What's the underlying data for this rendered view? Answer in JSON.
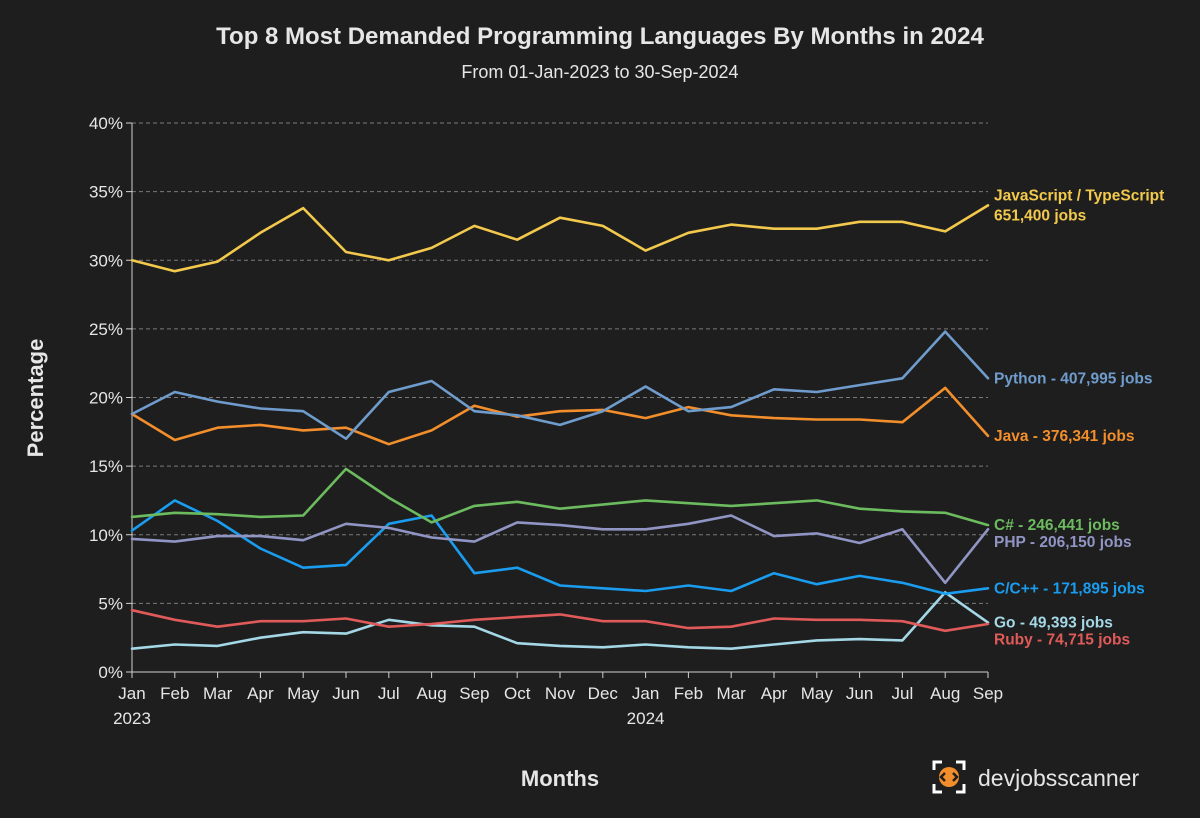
{
  "chart_data": {
    "type": "line",
    "title": "Top 8 Most Demanded Programming Languages By Months in 2024",
    "subtitle": "From 01-Jan-2023 to 30-Sep-2024",
    "xlabel": "Months",
    "ylabel": "Percentage",
    "ylim": [
      0,
      40
    ],
    "y_ticks": [
      "0%",
      "5%",
      "10%",
      "15%",
      "20%",
      "25%",
      "30%",
      "35%",
      "40%"
    ],
    "grid": "horizontal-dashed",
    "legend": "none (labels at line ends, right side)",
    "categories": [
      "Jan",
      "Feb",
      "Mar",
      "Apr",
      "May",
      "Jun",
      "Jul",
      "Aug",
      "Sep",
      "Oct",
      "Nov",
      "Dec",
      "Jan",
      "Feb",
      "Mar",
      "Apr",
      "May",
      "Jun",
      "Jul",
      "Aug",
      "Sep"
    ],
    "year_labels": [
      {
        "index": 0,
        "label": "2023"
      },
      {
        "index": 12,
        "label": "2024"
      }
    ],
    "series": [
      {
        "name": "JavaScript / TypeScript",
        "label_line1": "JavaScript / TypeScript",
        "label_line2": "651,400 jobs",
        "color": "#f2c94c",
        "values": [
          30.0,
          29.2,
          29.9,
          32.0,
          33.8,
          30.6,
          30.0,
          30.9,
          32.5,
          31.5,
          33.1,
          32.5,
          30.7,
          32.0,
          32.6,
          32.3,
          32.3,
          32.8,
          32.8,
          32.1,
          34.0
        ]
      },
      {
        "name": "Python",
        "label_line1": "Python - 407,995 jobs",
        "color": "#6f9ccc",
        "values": [
          18.8,
          20.4,
          19.7,
          19.2,
          19.0,
          17.0,
          20.4,
          21.2,
          19.0,
          18.7,
          18.0,
          19.0,
          20.8,
          19.0,
          19.3,
          20.6,
          20.4,
          20.9,
          21.4,
          24.8,
          21.4
        ]
      },
      {
        "name": "Java",
        "label_line1": "Java - 376,341 jobs",
        "color": "#f28e2b",
        "values": [
          18.8,
          16.9,
          17.8,
          18.0,
          17.6,
          17.8,
          16.6,
          17.6,
          19.4,
          18.6,
          19.0,
          19.1,
          18.5,
          19.3,
          18.7,
          18.5,
          18.4,
          18.4,
          18.2,
          20.7,
          17.2
        ]
      },
      {
        "name": "C#",
        "label_line1": "C# - 246,441 jobs",
        "color": "#6cbb5f",
        "values": [
          11.3,
          11.6,
          11.5,
          11.3,
          11.4,
          14.8,
          12.7,
          10.9,
          12.1,
          12.4,
          11.9,
          12.2,
          12.5,
          12.3,
          12.1,
          12.3,
          12.5,
          11.9,
          11.7,
          11.6,
          10.7
        ]
      },
      {
        "name": "PHP",
        "label_line1": "PHP - 206,150 jobs",
        "color": "#9195c4",
        "values": [
          9.7,
          9.5,
          9.9,
          9.9,
          9.6,
          10.8,
          10.5,
          9.8,
          9.5,
          10.9,
          10.7,
          10.4,
          10.4,
          10.8,
          11.4,
          9.9,
          10.1,
          9.4,
          10.4,
          6.5,
          10.4
        ]
      },
      {
        "name": "C/C++",
        "label_line1": "C/C++ - 171,895 jobs",
        "color": "#1a9cef",
        "values": [
          10.3,
          12.5,
          11.0,
          9.0,
          7.6,
          7.8,
          10.8,
          11.4,
          7.2,
          7.6,
          6.3,
          6.1,
          5.9,
          6.3,
          5.9,
          7.2,
          6.4,
          7.0,
          6.5,
          5.7,
          6.1
        ]
      },
      {
        "name": "Ruby",
        "label_line1": "Ruby - 74,715 jobs",
        "color": "#e05a5a",
        "values": [
          4.5,
          3.8,
          3.3,
          3.7,
          3.7,
          3.9,
          3.3,
          3.5,
          3.8,
          4.0,
          4.2,
          3.7,
          3.7,
          3.2,
          3.3,
          3.9,
          3.8,
          3.8,
          3.7,
          3.0,
          3.5
        ]
      },
      {
        "name": "Go",
        "label_line1": "Go - 49,393 jobs",
        "color": "#a4d8e6",
        "values": [
          1.7,
          2.0,
          1.9,
          2.5,
          2.9,
          2.8,
          3.8,
          3.4,
          3.3,
          2.1,
          1.9,
          1.8,
          2.0,
          1.8,
          1.7,
          2.0,
          2.3,
          2.4,
          2.3,
          5.8,
          3.6
        ]
      }
    ]
  },
  "branding": {
    "name": "devjobsscanner",
    "logo_icon": "devjobsscanner-logo-icon"
  },
  "colors": {
    "background": "#1e1e1e",
    "text": "#e6e6e6",
    "grid": "#7a7a7a",
    "axis": "#d0d0d0",
    "logo_accent": "#f28e2b"
  }
}
